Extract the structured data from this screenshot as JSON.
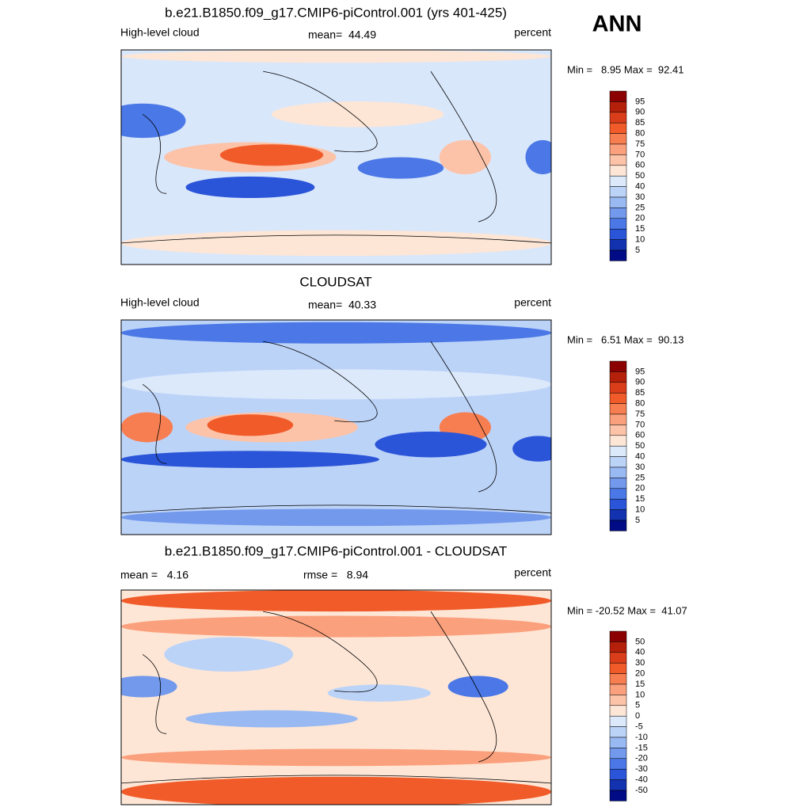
{
  "header": {
    "season": "ANN"
  },
  "panels": [
    {
      "title": "b.e21.B1850.f09_g17.CMIP6-piControl.001 (yrs 401-425)",
      "left_label": "High-level cloud",
      "center_label": "mean=  44.49",
      "right_label": "percent",
      "stats": "Min =   8.95 Max =  92.41",
      "colorbar_labels": [
        95,
        90,
        85,
        80,
        75,
        70,
        60,
        50,
        40,
        30,
        25,
        20,
        15,
        10,
        5
      ]
    },
    {
      "title": "CLOUDSAT",
      "left_label": "High-level cloud",
      "center_label": "mean=  40.33",
      "right_label": "percent",
      "stats": "Min =   6.51 Max =  90.13",
      "colorbar_labels": [
        95,
        90,
        85,
        80,
        75,
        70,
        60,
        50,
        40,
        30,
        25,
        20,
        15,
        10,
        5
      ]
    },
    {
      "title": "b.e21.B1850.f09_g17.CMIP6-piControl.001 - CLOUDSAT",
      "left_label": "mean =   4.16",
      "center_label": "rmse =   8.94",
      "right_label": "percent",
      "stats": "Min = -20.52 Max =  41.07",
      "colorbar_labels": [
        50,
        40,
        30,
        20,
        15,
        10,
        5,
        0,
        -5,
        -10,
        -15,
        -20,
        -30,
        -40,
        -50
      ]
    }
  ]
}
